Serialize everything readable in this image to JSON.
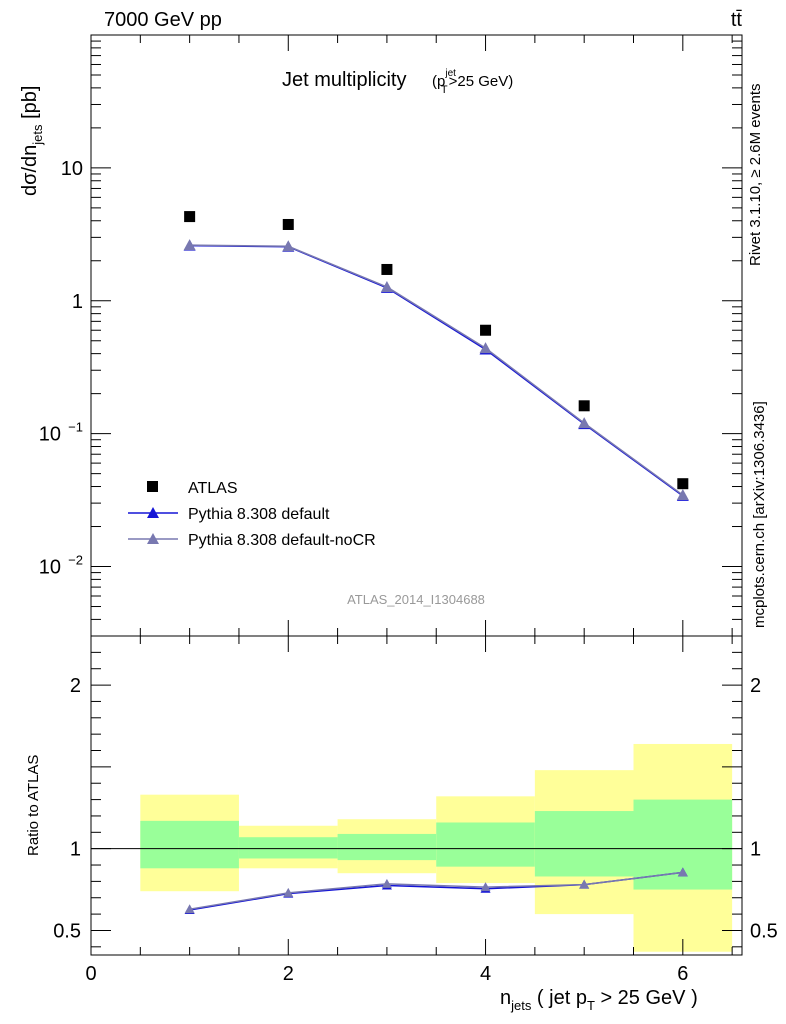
{
  "header": {
    "left": "7000 GeV pp",
    "right": "tt̄"
  },
  "side_text": {
    "top": "Rivet 3.1.10, ≥ 2.6M events",
    "bottom": "mcplots.cern.ch [arXiv:1306.3436]"
  },
  "plot": {
    "title_main": "Jet multiplicity",
    "title_sub": "(p",
    "title_sub_sup": "jet",
    "title_sub_sub": "T",
    "title_sub_tail": ">25 GeV)",
    "ylabel": "dσ/dn",
    "ylabel_sub": "jets",
    "ylabel_tail": " [pb]",
    "analysis_id": "ATLAS_2014_I1304688"
  },
  "ratio": {
    "ylabel": "Ratio to ATLAS"
  },
  "xaxis": {
    "label": "n",
    "label_sub": "jets",
    "label_mid": " ( jet p",
    "label_sub2": "T",
    "label_tail": " > 25 GeV )"
  },
  "legend": {
    "entries": [
      "ATLAS",
      "Pythia 8.308 default",
      "Pythia 8.308 default-noCR"
    ]
  },
  "colors": {
    "data": "#000000",
    "default": "#1515d6",
    "nocr": "#7878b0",
    "band_inner": "#99ff99",
    "band_outer": "#ffff99",
    "analysis_text": "#999999",
    "side_text": "#888888"
  },
  "chart_data": [
    {
      "type": "scatter",
      "panel": "main",
      "y_scale": "log",
      "xlim": [
        0,
        6.6
      ],
      "ylim": [
        0.003,
        100
      ],
      "x": [
        1,
        2,
        3,
        4,
        5,
        6
      ],
      "series": [
        {
          "name": "ATLAS",
          "values": [
            4.3,
            3.75,
            1.72,
            0.6,
            0.162,
            0.042
          ]
        },
        {
          "name": "Pythia 8.308 default",
          "values": [
            2.6,
            2.55,
            1.25,
            0.43,
            0.118,
            0.034
          ]
        },
        {
          "name": "Pythia 8.308 default-noCR",
          "values": [
            2.62,
            2.57,
            1.27,
            0.44,
            0.12,
            0.0345
          ]
        }
      ],
      "y_ticks": [
        {
          "value": 10,
          "label": "10"
        },
        {
          "value": 1,
          "label": "1"
        },
        {
          "value": 0.1,
          "label": "10",
          "sup": "−1"
        },
        {
          "value": 0.01,
          "label": "10",
          "sup": "−2"
        }
      ]
    },
    {
      "type": "line",
      "panel": "ratio",
      "xlim": [
        0,
        6.6
      ],
      "ylim": [
        0.35,
        2.3
      ],
      "x": [
        1,
        2,
        3,
        4,
        5,
        6
      ],
      "series": [
        {
          "name": "Pythia 8.308 default",
          "values": [
            0.625,
            0.725,
            0.775,
            0.755,
            0.78,
            0.855
          ]
        },
        {
          "name": "Pythia 8.308 default-noCR",
          "values": [
            0.63,
            0.73,
            0.785,
            0.765,
            0.78,
            0.855
          ]
        }
      ],
      "bands": {
        "bins": [
          [
            0.5,
            1.5
          ],
          [
            1.5,
            2.5
          ],
          [
            2.5,
            3.5
          ],
          [
            3.5,
            4.5
          ],
          [
            4.5,
            5.5
          ],
          [
            5.5,
            6.5
          ]
        ],
        "inner": [
          [
            0.88,
            1.17
          ],
          [
            0.94,
            1.07
          ],
          [
            0.93,
            1.09
          ],
          [
            0.89,
            1.16
          ],
          [
            0.83,
            1.23
          ],
          [
            0.75,
            1.3
          ]
        ],
        "outer": [
          [
            0.74,
            1.33
          ],
          [
            0.88,
            1.14
          ],
          [
            0.85,
            1.18
          ],
          [
            0.79,
            1.32
          ],
          [
            0.6,
            1.48
          ],
          [
            0.37,
            1.64
          ]
        ]
      },
      "reference": 1,
      "y_ticks": [
        {
          "value": 2,
          "label": "2"
        },
        {
          "value": 1,
          "label": "1"
        },
        {
          "value": 0.5,
          "label": "0.5"
        }
      ],
      "x_ticks": [
        {
          "value": 0,
          "label": "0"
        },
        {
          "value": 2,
          "label": "2"
        },
        {
          "value": 4,
          "label": "4"
        },
        {
          "value": 6,
          "label": "6"
        }
      ]
    }
  ]
}
